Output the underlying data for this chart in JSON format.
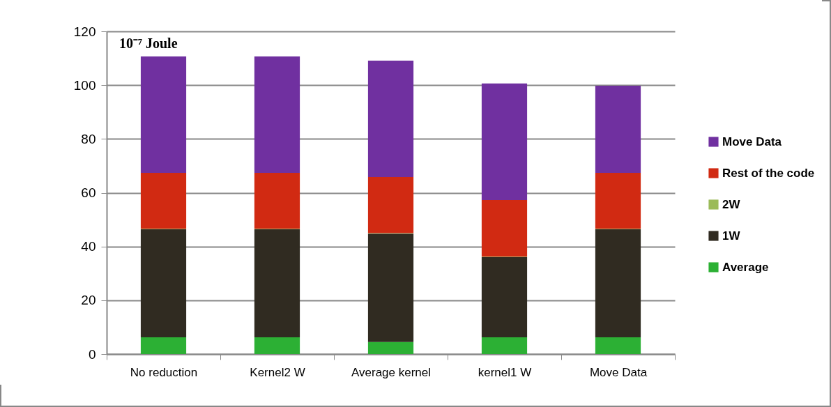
{
  "chart_data": {
    "type": "bar",
    "stacked": true,
    "ylabel": "10⁻⁷ Joule",
    "categories": [
      "No reduction",
      "Kernel2 W",
      "Average kernel",
      "kernel1 W",
      "Move Data"
    ],
    "series": [
      {
        "name": "Average",
        "color": "#2cb034",
        "values": [
          6.2,
          6.2,
          4.5,
          6.2,
          6.2
        ]
      },
      {
        "name": "1W",
        "color": "#302b21",
        "values": [
          40.2,
          40.2,
          40.3,
          29.8,
          40.2
        ]
      },
      {
        "name": "2W",
        "color": "#9bbb59",
        "values": [
          0.2,
          0.2,
          0.2,
          0.2,
          0.2
        ]
      },
      {
        "name": "Rest of the code",
        "color": "#d12a12",
        "values": [
          20.8,
          20.8,
          20.8,
          21.1,
          20.8
        ]
      },
      {
        "name": "Move Data",
        "color": "#7030a0",
        "values": [
          43.3,
          43.3,
          43.3,
          43.3,
          32.4
        ]
      }
    ],
    "ylim": [
      0,
      120
    ],
    "yticks": [
      0,
      20,
      40,
      60,
      80,
      100,
      120
    ],
    "grid": "y",
    "legend": "right"
  }
}
